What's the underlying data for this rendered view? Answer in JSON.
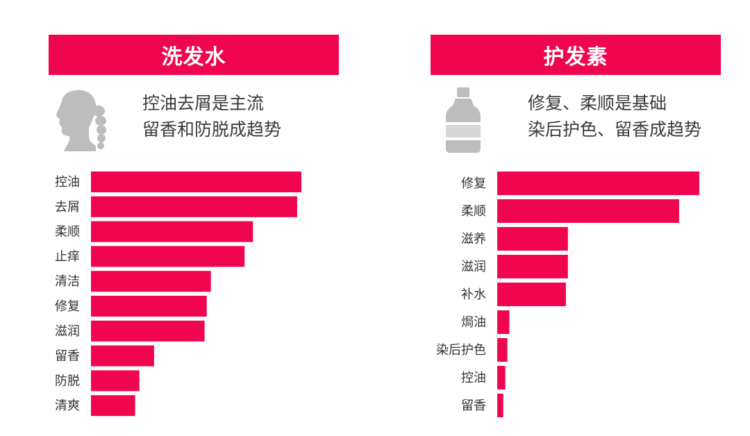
{
  "colors": {
    "accent": "#F0054F",
    "icon_gray": "#BDBDBD",
    "text": "#333333"
  },
  "icons": {
    "left": "woman-profile-ponytail-icon",
    "right": "bottle-icon"
  },
  "chart_data": [
    {
      "type": "bar",
      "orientation": "horizontal",
      "title": "洗发水",
      "subtitle_lines": [
        "控油去屑是主流",
        "留香和防脱成趋势"
      ],
      "categories": [
        "控油",
        "去屑",
        "柔顺",
        "止痒",
        "清洁",
        "修复",
        "滋润",
        "留香",
        "防脱",
        "清爽"
      ],
      "values": [
        100,
        98,
        77,
        73,
        57,
        55,
        54,
        30,
        23,
        21
      ],
      "grid": false,
      "legend": "none"
    },
    {
      "type": "bar",
      "orientation": "horizontal",
      "title": "护发素",
      "subtitle_lines": [
        "修复、柔顺是基础",
        "染后护色、留香成趋势"
      ],
      "categories": [
        "修复",
        "柔顺",
        "滋养",
        "滋润",
        "补水",
        "焗油",
        "染后护色",
        "控油",
        "留香"
      ],
      "values": [
        100,
        90,
        35,
        35,
        34,
        6,
        5,
        4,
        3
      ],
      "grid": false,
      "legend": "none"
    }
  ]
}
